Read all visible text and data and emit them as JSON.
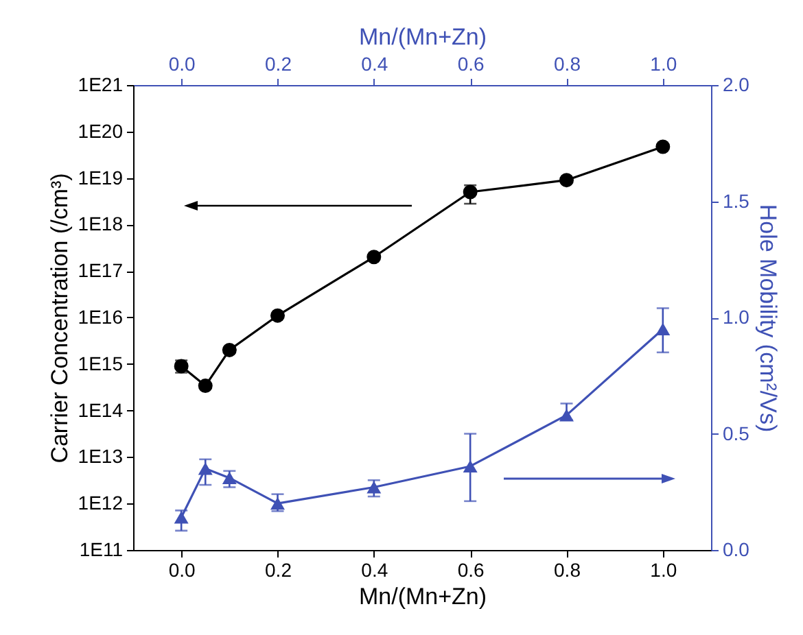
{
  "chart_data": {
    "type": "line",
    "xlabel": "Mn/(Mn+Zn)",
    "x2label": "Mn/(Mn+Zn)",
    "ylabel": "Carrier Concentration (/cm³)",
    "y2label": "Hole Mobility (cm²/Vs)",
    "x": [
      0,
      0.05,
      0.1,
      0.2,
      0.4,
      0.6,
      0.8,
      1.0
    ],
    "series": [
      {
        "color": "#000000",
        "marker": "circle",
        "values": [
          900000000000000.0,
          340000000000000.0,
          2000000000000000.0,
          1.1e+16,
          2e+17,
          5e+18,
          9e+18,
          4.7e+19
        ],
        "errors": [
          [
            650000000000000.0,
            1200000000000000.0
          ],
          null,
          null,
          null,
          null,
          [
            2.8e+18,
            7e+18
          ],
          null,
          null
        ]
      },
      {
        "color": "#3f51b5",
        "marker": "triangle",
        "axis": "y2",
        "values": [
          0.14,
          0.35,
          0.31,
          0.2,
          0.27,
          0.36,
          0.58,
          0.95
        ],
        "errors": [
          [
            0.083,
            0.17
          ],
          [
            0.28,
            0.39
          ],
          [
            0.27,
            0.34
          ],
          [
            0.167,
            0.24
          ],
          [
            0.23,
            0.3
          ],
          [
            0.21,
            0.5
          ],
          [
            0.56,
            0.63
          ],
          [
            0.85,
            1.04
          ]
        ]
      }
    ],
    "log": "y",
    "xlim": [
      -0.1,
      1.1
    ],
    "xticks": [
      {
        "value": 0,
        "label": "0.0"
      },
      {
        "value": 0.2,
        "label": "0.2"
      },
      {
        "value": 0.4,
        "label": "0.4"
      },
      {
        "value": 0.6,
        "label": "0.6"
      },
      {
        "value": 0.8,
        "label": "0.8"
      },
      {
        "value": 1,
        "label": "1.0"
      }
    ],
    "x2lim": [
      -0.1,
      1.1
    ],
    "x2ticks": [
      {
        "value": 0,
        "label": "0.0"
      },
      {
        "value": 0.2,
        "label": "0.2"
      },
      {
        "value": 0.4,
        "label": "0.4"
      },
      {
        "value": 0.6,
        "label": "0.6"
      },
      {
        "value": 0.8,
        "label": "0.8"
      },
      {
        "value": 1,
        "label": "1.0"
      }
    ],
    "ylim": [
      100000000000.0,
      1e+21
    ],
    "yticks": [
      {
        "value": 100000000000.0,
        "label": "1E11"
      },
      {
        "value": 1000000000000.0,
        "label": "1E12"
      },
      {
        "value": 10000000000000.0,
        "label": "1E13"
      },
      {
        "value": 100000000000000.0,
        "label": "1E14"
      },
      {
        "value": 1000000000000000.0,
        "label": "1E15"
      },
      {
        "value": 1e+16,
        "label": "1E16"
      },
      {
        "value": 1e+17,
        "label": "1E17"
      },
      {
        "value": 1e+18,
        "label": "1E18"
      },
      {
        "value": 1e+19,
        "label": "1E19"
      },
      {
        "value": 1e+20,
        "label": "1E20"
      },
      {
        "value": 1e+21,
        "label": "1E21"
      }
    ],
    "y2lim": [
      0,
      2
    ],
    "y2ticks": [
      {
        "value": 0,
        "label": "0.0"
      },
      {
        "value": 0.5,
        "label": "0.5"
      },
      {
        "value": 1,
        "label": "1.0"
      },
      {
        "value": 1.5,
        "label": "1.5"
      },
      {
        "value": 2,
        "label": "2.0"
      }
    ],
    "grid": false
  }
}
